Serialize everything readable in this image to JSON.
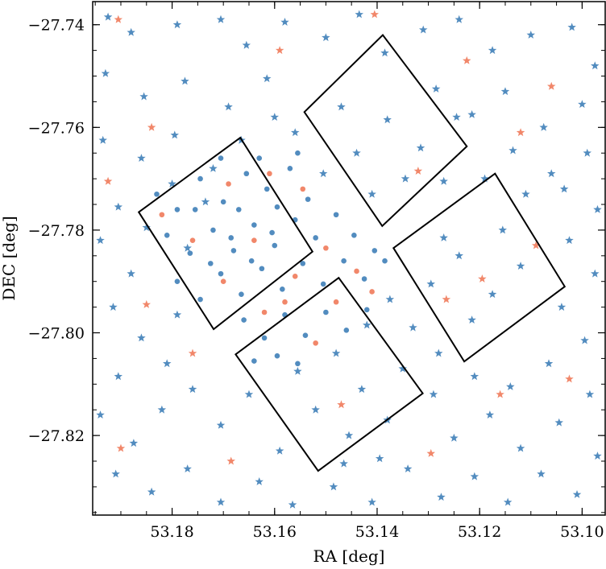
{
  "chart_data": {
    "type": "scatter",
    "title": "",
    "xlabel": "RA [deg]",
    "ylabel": "DEC [deg]",
    "xlim": [
      53.1955,
      53.0955
    ],
    "ylim": [
      -27.8355,
      -27.7355
    ],
    "x_inverted": true,
    "grid": false,
    "legend": "none",
    "x_ticks": [
      53.18,
      53.16,
      53.14,
      53.12,
      53.1
    ],
    "x_tick_labels": [
      "53.18",
      "53.16",
      "53.14",
      "53.12",
      "53.10"
    ],
    "y_ticks": [
      -27.74,
      -27.76,
      -27.78,
      -27.8,
      -27.82
    ],
    "y_tick_labels": [
      "−27.74",
      "−27.76",
      "−27.78",
      "−27.80",
      "−27.82"
    ],
    "colors": {
      "blue": "#3f7fb8",
      "orange": "#f07a5a",
      "frame": "#000000"
    },
    "series": [
      {
        "marker": "star",
        "color": "#3f7fb8",
        "points": [
          [
            53.1925,
            -27.7385
          ],
          [
            53.188,
            -27.7415
          ],
          [
            53.179,
            -27.74
          ],
          [
            53.1705,
            -27.739
          ],
          [
            53.1655,
            -27.744
          ],
          [
            53.158,
            -27.7395
          ],
          [
            53.15,
            -27.7425
          ],
          [
            53.1435,
            -27.738
          ],
          [
            53.1385,
            -27.7455
          ],
          [
            53.131,
            -27.741
          ],
          [
            53.124,
            -27.739
          ],
          [
            53.1175,
            -27.745
          ],
          [
            53.11,
            -27.742
          ],
          [
            53.102,
            -27.7405
          ],
          [
            53.0975,
            -27.748
          ],
          [
            53.193,
            -27.7495
          ],
          [
            53.1855,
            -27.754
          ],
          [
            53.1775,
            -27.751
          ],
          [
            53.169,
            -27.756
          ],
          [
            53.1615,
            -27.7505
          ],
          [
            53.1285,
            -27.7525
          ],
          [
            53.1215,
            -27.7575
          ],
          [
            53.115,
            -27.753
          ],
          [
            53.1075,
            -27.76
          ],
          [
            53.1,
            -27.7555
          ],
          [
            53.1935,
            -27.7625
          ],
          [
            53.186,
            -27.766
          ],
          [
            53.1795,
            -27.7615
          ],
          [
            53.172,
            -27.768
          ],
          [
            53.1665,
            -27.7625
          ],
          [
            53.1135,
            -27.7645
          ],
          [
            53.106,
            -27.769
          ],
          [
            53.099,
            -27.765
          ],
          [
            53.119,
            -27.77
          ],
          [
            53.111,
            -27.773
          ],
          [
            53.1905,
            -27.7755
          ],
          [
            53.194,
            -27.782
          ],
          [
            53.188,
            -27.7885
          ],
          [
            53.1915,
            -27.795
          ],
          [
            53.186,
            -27.801
          ],
          [
            53.179,
            -27.7965
          ],
          [
            53.181,
            -27.806
          ],
          [
            53.1905,
            -27.8085
          ],
          [
            53.194,
            -27.816
          ],
          [
            53.1875,
            -27.8215
          ],
          [
            53.182,
            -27.815
          ],
          [
            53.176,
            -27.811
          ],
          [
            53.1705,
            -27.818
          ],
          [
            53.165,
            -27.812
          ],
          [
            53.159,
            -27.823
          ],
          [
            53.191,
            -27.8275
          ],
          [
            53.184,
            -27.831
          ],
          [
            53.177,
            -27.8265
          ],
          [
            53.1705,
            -27.833
          ],
          [
            53.163,
            -27.829
          ],
          [
            53.1565,
            -27.8335
          ],
          [
            53.1485,
            -27.83
          ],
          [
            53.141,
            -27.833
          ],
          [
            53.134,
            -27.8265
          ],
          [
            53.1275,
            -27.832
          ],
          [
            53.121,
            -27.828
          ],
          [
            53.1145,
            -27.833
          ],
          [
            53.108,
            -27.8275
          ],
          [
            53.101,
            -27.8315
          ],
          [
            53.097,
            -27.824
          ],
          [
            53.125,
            -27.8205
          ],
          [
            53.118,
            -27.816
          ],
          [
            53.112,
            -27.8225
          ],
          [
            53.1045,
            -27.8175
          ],
          [
            53.0985,
            -27.812
          ],
          [
            53.129,
            -27.812
          ],
          [
            53.121,
            -27.8085
          ],
          [
            53.114,
            -27.8105
          ],
          [
            53.1065,
            -27.806
          ],
          [
            53.0995,
            -27.8015
          ],
          [
            53.104,
            -27.795
          ],
          [
            53.0975,
            -27.7885
          ],
          [
            53.1025,
            -27.782
          ],
          [
            53.097,
            -27.776
          ],
          [
            53.1035,
            -27.772
          ],
          [
            53.1155,
            -27.78
          ],
          [
            53.112,
            -27.787
          ],
          [
            53.1175,
            -27.7925
          ],
          [
            53.124,
            -27.785
          ],
          [
            53.1215,
            -27.7975
          ],
          [
            53.1295,
            -27.7905
          ],
          [
            53.127,
            -27.7815
          ],
          [
            53.133,
            -27.799
          ],
          [
            53.128,
            -27.804
          ],
          [
            53.135,
            -27.807
          ],
          [
            53.143,
            -27.811
          ],
          [
            53.138,
            -27.817
          ],
          [
            53.1455,
            -27.82
          ],
          [
            53.152,
            -27.815
          ],
          [
            53.1465,
            -27.8255
          ],
          [
            53.1395,
            -27.8245
          ],
          [
            53.1555,
            -27.8075
          ],
          [
            53.148,
            -27.804
          ],
          [
            53.142,
            -27.7985
          ],
          [
            53.1375,
            -27.7935
          ],
          [
            53.1245,
            -27.758
          ],
          [
            53.1315,
            -27.764
          ],
          [
            53.138,
            -27.7585
          ],
          [
            53.144,
            -27.765
          ],
          [
            53.1345,
            -27.77
          ],
          [
            53.141,
            -27.773
          ],
          [
            53.147,
            -27.756
          ],
          [
            53.1505,
            -27.769
          ],
          [
            53.156,
            -27.761
          ],
          [
            53.127,
            -27.7705
          ],
          [
            53.16,
            -27.758
          ],
          [
            53.1735,
            -27.7745
          ],
          [
            53.18,
            -27.771
          ],
          [
            53.177,
            -27.7835
          ],
          [
            53.185,
            -27.7795
          ]
        ]
      },
      {
        "marker": "star",
        "color": "#f07a5a",
        "points": [
          [
            53.1905,
            -27.739
          ],
          [
            53.159,
            -27.745
          ],
          [
            53.1405,
            -27.738
          ],
          [
            53.1225,
            -27.747
          ],
          [
            53.106,
            -27.752
          ],
          [
            53.184,
            -27.76
          ],
          [
            53.112,
            -27.761
          ],
          [
            53.1925,
            -27.7705
          ],
          [
            53.185,
            -27.7945
          ],
          [
            53.176,
            -27.804
          ],
          [
            53.19,
            -27.8225
          ],
          [
            53.1685,
            -27.825
          ],
          [
            53.147,
            -27.814
          ],
          [
            53.1295,
            -27.8235
          ],
          [
            53.116,
            -27.812
          ],
          [
            53.1025,
            -27.809
          ],
          [
            53.1195,
            -27.7895
          ],
          [
            53.1265,
            -27.7935
          ],
          [
            53.109,
            -27.783
          ],
          [
            53.132,
            -27.7685
          ]
        ]
      },
      {
        "marker": "dot",
        "color": "#3f7fb8",
        "points": [
          [
            53.183,
            -27.773
          ],
          [
            53.179,
            -27.776
          ],
          [
            53.1745,
            -27.77
          ],
          [
            53.17,
            -27.7745
          ],
          [
            53.1655,
            -27.769
          ],
          [
            53.1615,
            -27.772
          ],
          [
            53.157,
            -27.768
          ],
          [
            53.1535,
            -27.774
          ],
          [
            53.181,
            -27.781
          ],
          [
            53.1765,
            -27.7845
          ],
          [
            53.172,
            -27.78
          ],
          [
            53.168,
            -27.784
          ],
          [
            53.164,
            -27.779
          ],
          [
            53.16,
            -27.783
          ],
          [
            53.156,
            -27.778
          ],
          [
            53.152,
            -27.7815
          ],
          [
            53.148,
            -27.777
          ],
          [
            53.1445,
            -27.781
          ],
          [
            53.1405,
            -27.784
          ],
          [
            53.179,
            -27.79
          ],
          [
            53.1745,
            -27.7935
          ],
          [
            53.1705,
            -27.7885
          ],
          [
            53.1665,
            -27.7925
          ],
          [
            53.1625,
            -27.7875
          ],
          [
            53.1585,
            -27.7915
          ],
          [
            53.1545,
            -27.7865
          ],
          [
            53.1505,
            -27.7905
          ],
          [
            53.1465,
            -27.786
          ],
          [
            53.1425,
            -27.7895
          ],
          [
            53.1385,
            -27.786
          ],
          [
            53.166,
            -27.7975
          ],
          [
            53.162,
            -27.801
          ],
          [
            53.158,
            -27.7965
          ],
          [
            53.154,
            -27.8005
          ],
          [
            53.15,
            -27.796
          ],
          [
            53.146,
            -27.7995
          ],
          [
            53.142,
            -27.7955
          ],
          [
            53.1595,
            -27.8045
          ],
          [
            53.1555,
            -27.806
          ],
          [
            53.164,
            -27.8055
          ],
          [
            53.1755,
            -27.776
          ],
          [
            53.1705,
            -27.766
          ],
          [
            53.167,
            -27.776
          ],
          [
            53.163,
            -27.766
          ],
          [
            53.1595,
            -27.7755
          ],
          [
            53.1555,
            -27.765
          ],
          [
            53.1725,
            -27.7865
          ],
          [
            53.1685,
            -27.7815
          ],
          [
            53.1645,
            -27.786
          ],
          [
            53.1605,
            -27.7805
          ]
        ]
      },
      {
        "marker": "dot",
        "color": "#f07a5a",
        "points": [
          [
            53.182,
            -27.777
          ],
          [
            53.176,
            -27.782
          ],
          [
            53.169,
            -27.771
          ],
          [
            53.161,
            -27.769
          ],
          [
            53.1545,
            -27.772
          ],
          [
            53.15,
            -27.7835
          ],
          [
            53.144,
            -27.788
          ],
          [
            53.158,
            -27.794
          ],
          [
            53.162,
            -27.796
          ],
          [
            53.148,
            -27.794
          ],
          [
            53.141,
            -27.792
          ],
          [
            53.17,
            -27.79
          ],
          [
            53.164,
            -27.782
          ],
          [
            53.156,
            -27.789
          ],
          [
            53.152,
            -27.802
          ]
        ]
      }
    ],
    "footprints": [
      {
        "corners": [
          [
            53.1865,
            -27.7765
          ],
          [
            53.1667,
            -27.762
          ],
          [
            53.1526,
            -27.7842
          ],
          [
            53.1719,
            -27.7993
          ]
        ]
      },
      {
        "corners": [
          [
            53.1542,
            -27.757
          ],
          [
            53.1389,
            -27.742
          ],
          [
            53.1225,
            -27.7637
          ],
          [
            53.139,
            -27.7792
          ]
        ]
      },
      {
        "corners": [
          [
            53.1368,
            -27.7835
          ],
          [
            53.117,
            -27.769
          ],
          [
            53.1034,
            -27.791
          ],
          [
            53.123,
            -27.8056
          ]
        ]
      },
      {
        "corners": [
          [
            53.1676,
            -27.8042
          ],
          [
            53.1475,
            -27.7893
          ],
          [
            53.1311,
            -27.8118
          ],
          [
            53.1515,
            -27.8269
          ]
        ]
      }
    ]
  }
}
